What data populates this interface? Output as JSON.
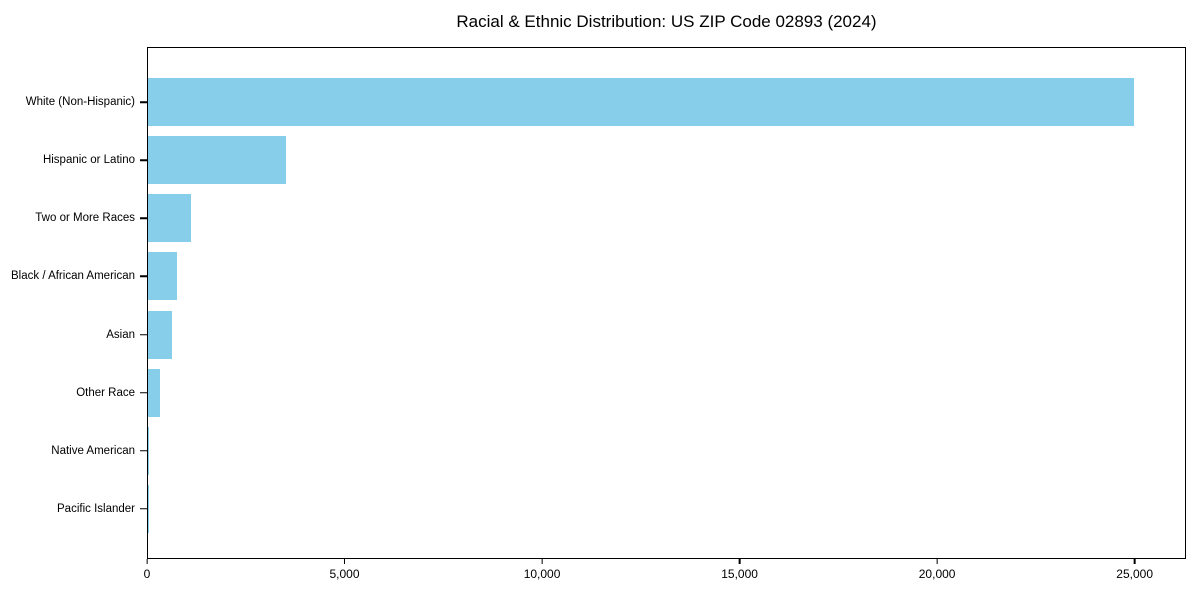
{
  "title": "Racial & Ethnic Distribution: US ZIP Code 02893 (2024)",
  "colors": {
    "background": "#ffffff",
    "bar": "#87CEEB",
    "axis": "#000000",
    "text": "#000000"
  },
  "chart_data": {
    "type": "bar",
    "orientation": "horizontal",
    "title": "Racial & Ethnic Distribution: US ZIP Code 02893 (2024)",
    "categories": [
      "White (Non-Hispanic)",
      "Hispanic or Latino",
      "Two or More Races",
      "Black / African American",
      "Asian",
      "Other Race",
      "Native American",
      "Pacific Islander"
    ],
    "values": [
      25000,
      3500,
      1090,
      730,
      600,
      310,
      30,
      10
    ],
    "xlabel": "",
    "ylabel": "",
    "xlim": [
      0,
      26300
    ],
    "x_ticks": [
      0,
      5000,
      10000,
      15000,
      20000,
      25000
    ],
    "x_tick_labels": [
      "0",
      "5,000",
      "10,000",
      "15,000",
      "20,000",
      "25,000"
    ],
    "grid": false,
    "legend": null,
    "bar_color": "#87CEEB",
    "frame": "full-box"
  }
}
